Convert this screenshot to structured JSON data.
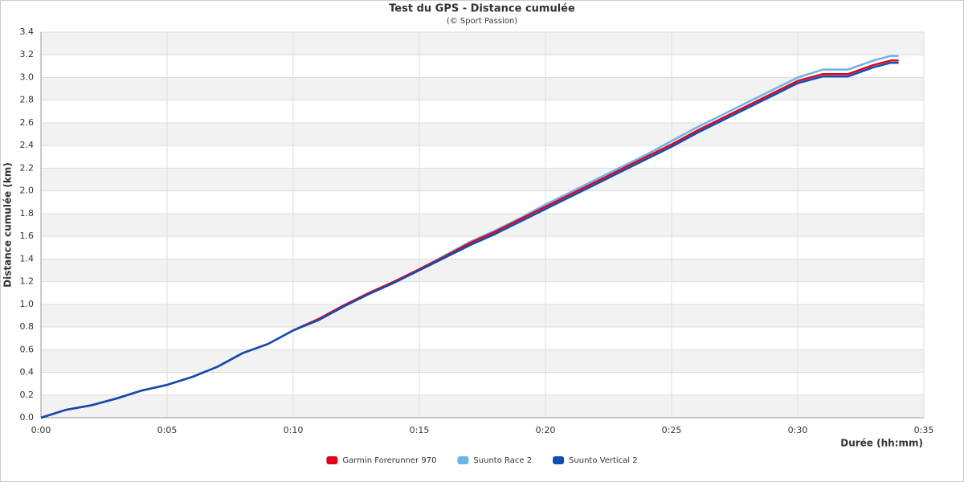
{
  "chart_data": {
    "type": "line",
    "title": "Test du GPS - Distance cumulée",
    "subtitle": "(© Sport Passion)",
    "x_label": "Durée (hh:mm)",
    "y_label": "Distance cumulée (km)",
    "x": [
      0,
      1,
      2,
      3,
      4,
      5,
      6,
      7,
      8,
      9,
      10,
      11,
      12,
      13,
      14,
      15,
      16,
      17,
      18,
      19,
      20,
      21,
      22,
      23,
      24,
      25,
      26,
      27,
      28,
      29,
      30,
      31,
      32,
      33,
      33.7,
      34
    ],
    "series": [
      {
        "name": "Garmin Forerunner 970",
        "color": "#e2001a",
        "values": [
          0,
          0.07,
          0.11,
          0.17,
          0.24,
          0.29,
          0.36,
          0.45,
          0.57,
          0.65,
          0.77,
          0.87,
          0.99,
          1.1,
          1.2,
          1.31,
          1.42,
          1.54,
          1.64,
          1.75,
          1.86,
          1.97,
          2.08,
          2.19,
          2.3,
          2.41,
          2.53,
          2.64,
          2.75,
          2.86,
          2.97,
          3.03,
          3.03,
          3.11,
          3.15,
          3.15
        ]
      },
      {
        "name": "Suunto Race 2",
        "color": "#6cb4e8",
        "values": [
          0,
          0.07,
          0.11,
          0.17,
          0.24,
          0.29,
          0.36,
          0.45,
          0.57,
          0.65,
          0.77,
          0.87,
          0.99,
          1.1,
          1.2,
          1.31,
          1.43,
          1.55,
          1.65,
          1.76,
          1.88,
          1.99,
          2.1,
          2.21,
          2.32,
          2.44,
          2.56,
          2.67,
          2.78,
          2.89,
          3.0,
          3.07,
          3.07,
          3.15,
          3.19,
          3.19
        ]
      },
      {
        "name": "Suunto Vertical 2",
        "color": "#0b4fb3",
        "values": [
          0,
          0.07,
          0.11,
          0.17,
          0.24,
          0.29,
          0.36,
          0.45,
          0.57,
          0.65,
          0.77,
          0.86,
          0.98,
          1.09,
          1.19,
          1.3,
          1.41,
          1.52,
          1.62,
          1.73,
          1.84,
          1.95,
          2.06,
          2.17,
          2.28,
          2.39,
          2.51,
          2.62,
          2.73,
          2.84,
          2.95,
          3.01,
          3.01,
          3.09,
          3.13,
          3.13
        ]
      }
    ],
    "xlim": [
      0,
      35
    ],
    "xticks": [
      {
        "value": 0,
        "label": "0:00"
      },
      {
        "value": 5,
        "label": "0:05"
      },
      {
        "value": 10,
        "label": "0:10"
      },
      {
        "value": 15,
        "label": "0:15"
      },
      {
        "value": 20,
        "label": "0:20"
      },
      {
        "value": 25,
        "label": "0:25"
      },
      {
        "value": 30,
        "label": "0:30"
      },
      {
        "value": 35,
        "label": "0:35"
      }
    ],
    "ylim": [
      0,
      3.4
    ],
    "yticks": [
      {
        "value": 0,
        "label": "0.0"
      },
      0.2,
      0.4,
      0.6,
      0.8,
      {
        "value": 1,
        "label": "1.0"
      },
      1.2,
      1.4,
      1.6,
      1.8,
      {
        "value": 2,
        "label": "2.0"
      },
      2.2,
      2.4,
      2.6,
      2.8,
      {
        "value": 3,
        "label": "3.0"
      },
      3.2,
      3.4
    ],
    "grid": true,
    "legend": "bottom"
  }
}
